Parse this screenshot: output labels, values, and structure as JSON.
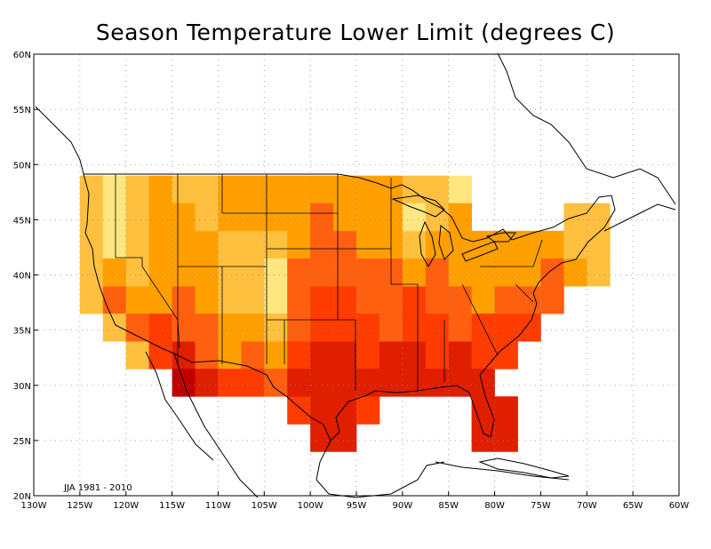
{
  "title": "Season Temperature Lower Limit (degrees C)",
  "note": "JJA 1981 - 2010",
  "lat_labels": [
    "60N",
    "55N",
    "50N",
    "45N",
    "40N",
    "35N",
    "30N",
    "25N",
    "20N"
  ],
  "lon_labels": [
    "130W",
    "125W",
    "120W",
    "115W",
    "110W",
    "105W",
    "100W",
    "95W",
    "90W",
    "85W",
    "80W",
    "75W",
    "70W",
    "65W",
    "60W"
  ],
  "colors": {
    "pale": "#ffe680",
    "light": "#ffc040",
    "orange": "#ffa000",
    "deep_orange": "#ff6010",
    "red_orange": "#ff3c00",
    "red": "#e01e00",
    "dark_red": "#c00000"
  }
}
